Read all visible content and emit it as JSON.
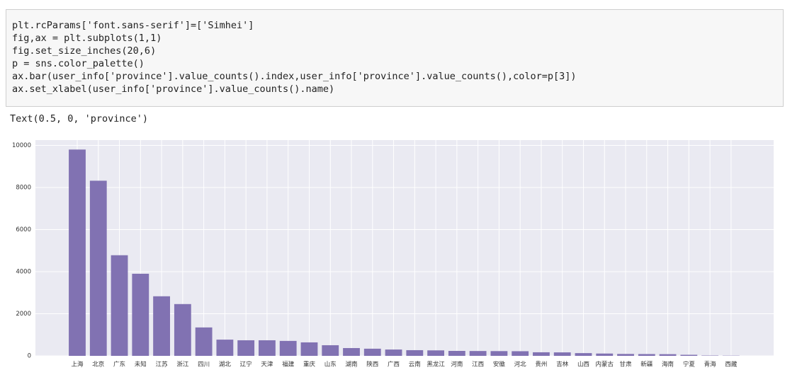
{
  "code_cell": {
    "lines": [
      "plt.rcParams['font.sans-serif']=['Simhei']",
      "fig,ax = plt.subplots(1,1)",
      "fig.set_size_inches(20,6)",
      "p = sns.color_palette()",
      "ax.bar(user_info['province'].value_counts().index,user_info['province'].value_counts(),color=p[3])",
      "ax.set_xlabel(user_info['province'].value_counts().name)"
    ]
  },
  "output_text": "Text(0.5, 0, 'province')",
  "chart_data": {
    "type": "bar",
    "categories": [
      "上海",
      "北京",
      "广东",
      "未知",
      "江苏",
      "浙江",
      "四川",
      "湖北",
      "辽宁",
      "天津",
      "福建",
      "重庆",
      "山东",
      "湖南",
      "陕西",
      "广西",
      "云南",
      "黑龙江",
      "河南",
      "江西",
      "安徽",
      "河北",
      "贵州",
      "吉林",
      "山西",
      "内蒙古",
      "甘肃",
      "新疆",
      "海南",
      "宁夏",
      "青海",
      "西藏"
    ],
    "values": [
      9800,
      8320,
      4780,
      3900,
      2830,
      2460,
      1350,
      770,
      740,
      740,
      710,
      640,
      505,
      370,
      340,
      300,
      270,
      260,
      235,
      230,
      225,
      220,
      170,
      165,
      130,
      110,
      90,
      85,
      80,
      50,
      15,
      10
    ],
    "color": "#8172b2",
    "ylim": [
      0,
      10250
    ],
    "yticks": [
      0,
      2000,
      4000,
      6000,
      8000,
      10000
    ],
    "grid": true
  }
}
